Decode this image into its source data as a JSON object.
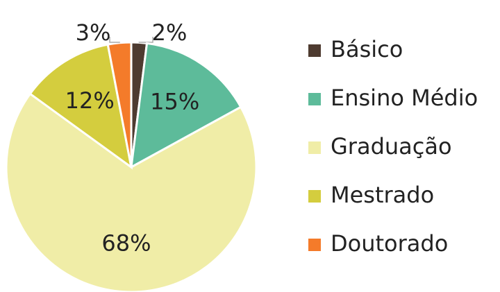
{
  "chart_data": {
    "type": "pie",
    "categories": [
      "Básico",
      "Ensino Médio",
      "Graduação",
      "Mestrado",
      "Doutorado"
    ],
    "values": [
      2,
      15,
      68,
      12,
      3
    ],
    "value_labels": [
      "2%",
      "15%",
      "68%",
      "12%",
      "3%"
    ],
    "colors": [
      "#4e3b30",
      "#5dbb9a",
      "#f0eda7",
      "#d4cd3e",
      "#f47b2a"
    ],
    "legend": "right"
  }
}
